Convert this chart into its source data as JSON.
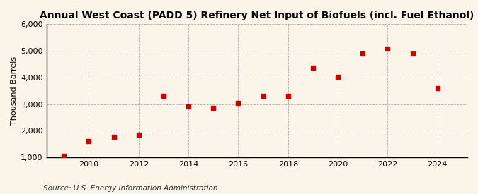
{
  "title": "Annual West Coast (PADD 5) Refinery Net Input of Biofuels (incl. Fuel Ethanol)",
  "ylabel": "Thousand Barrels",
  "source": "Source: U.S. Energy Information Administration",
  "years": [
    2009,
    2010,
    2011,
    2012,
    2013,
    2014,
    2015,
    2016,
    2017,
    2018,
    2019,
    2020,
    2021,
    2022,
    2023,
    2024
  ],
  "values": [
    1050,
    1600,
    1780,
    1850,
    3300,
    2900,
    2850,
    3050,
    3300,
    3300,
    4380,
    4020,
    4900,
    5090,
    4900,
    3600
  ],
  "marker_color": "#cc0000",
  "marker_size": 18,
  "background_color": "#faf5e8",
  "grid_color": "#999999",
  "ylim": [
    1000,
    6000
  ],
  "yticks": [
    1000,
    2000,
    3000,
    4000,
    5000,
    6000
  ],
  "xlim": [
    2008.3,
    2025.2
  ],
  "xticks": [
    2010,
    2012,
    2014,
    2016,
    2018,
    2020,
    2022,
    2024
  ],
  "title_fontsize": 10,
  "ylabel_fontsize": 8,
  "tick_fontsize": 8,
  "source_fontsize": 7.5
}
